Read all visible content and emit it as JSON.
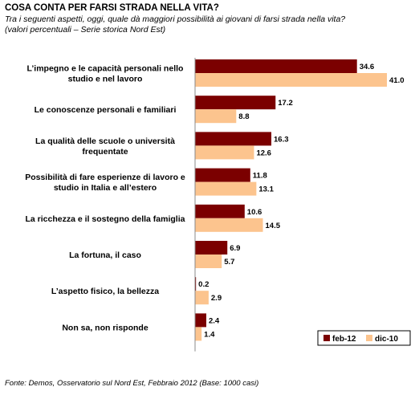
{
  "title": "COSA CONTA PER FARSI STRADA NELLA VITA?",
  "subtitle_line1": "Tra i seguenti aspetti, oggi, quale dà maggiori possibilità ai giovani di farsi strada nella vita?",
  "subtitle_line2": "(valori percentuali – Serie storica Nord Est)",
  "source": "Fonte: Demos, Osservatorio sul Nord Est, Febbraio 2012 (Base: 1000 casi)",
  "colors": {
    "feb12": "#7b0000",
    "dic10": "#fcc48e"
  },
  "chart_data": {
    "type": "bar",
    "orientation": "horizontal",
    "categories": [
      [
        "L’impegno e le capacità personali nello",
        "studio e nel lavoro"
      ],
      [
        "Le conoscenze personali e familiari"
      ],
      [
        "La qualità delle scuole o università",
        "frequentate"
      ],
      [
        "Possibilità di fare esperienze di lavoro e",
        "studio in Italia e all’estero"
      ],
      [
        "La ricchezza e il sostegno della famiglia"
      ],
      [
        "La fortuna, il caso"
      ],
      [
        "L’aspetto fisico, la bellezza"
      ],
      [
        "Non sa, non risponde"
      ]
    ],
    "series": [
      {
        "name": "feb-12",
        "values": [
          34.6,
          17.2,
          16.3,
          11.8,
          10.6,
          6.9,
          0.2,
          2.4
        ],
        "labels": [
          "34.6",
          "17.2",
          "16.3",
          "11.8",
          "10.6",
          "6.9",
          "0.2",
          "2.4"
        ]
      },
      {
        "name": "dic-10",
        "values": [
          41.0,
          8.8,
          12.6,
          13.1,
          14.5,
          5.7,
          2.9,
          1.4
        ],
        "labels": [
          "41.0",
          "8.8",
          "12.6",
          "13.1",
          "14.5",
          "5.7",
          "2.9",
          "1.4"
        ]
      }
    ],
    "xlim": [
      0,
      41
    ],
    "legend_position": "bottom-right"
  }
}
